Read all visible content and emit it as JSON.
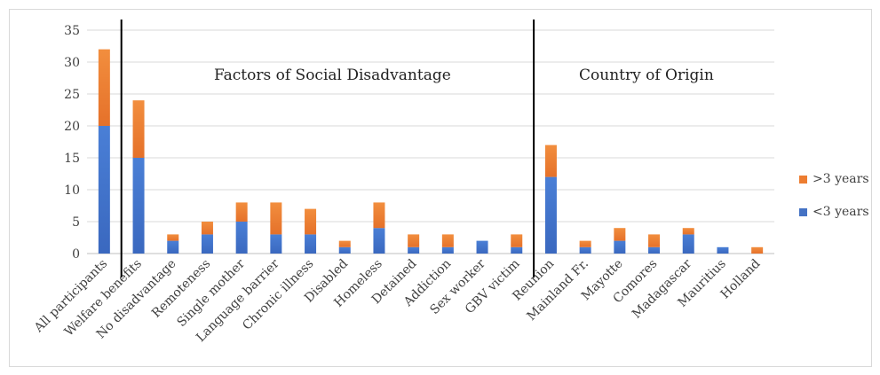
{
  "chart_data": {
    "type": "bar",
    "stacked": true,
    "categories": [
      "All participants",
      "Welfare benefits",
      "No disadvantage",
      "Remoteness",
      "Single mother",
      "Language barrier",
      "Chronic illness",
      "Disabled",
      "Homeless",
      "Detained",
      "Addiction",
      "Sex worker",
      "GBV victim",
      "Reunion",
      "Mainland Fr.",
      "Mayotte",
      "Comores",
      "Madagascar",
      "Mauritius",
      "Holland"
    ],
    "series": [
      {
        "name": "<3 years",
        "color": "#4472c4",
        "values": [
          20,
          15,
          2,
          3,
          5,
          3,
          3,
          1,
          4,
          1,
          1,
          2,
          1,
          12,
          1,
          2,
          1,
          3,
          1,
          0
        ]
      },
      {
        "name": ">3 years",
        "color": "#ed7d31",
        "values": [
          12,
          9,
          1,
          2,
          3,
          5,
          4,
          1,
          4,
          2,
          2,
          0,
          2,
          5,
          1,
          2,
          2,
          1,
          0,
          1
        ]
      }
    ],
    "ylim": [
      0,
      35
    ],
    "yticks": [
      0,
      5,
      10,
      15,
      20,
      25,
      30,
      35
    ],
    "grid": true,
    "legend_position": "right",
    "separators_after_index": [
      0,
      12
    ],
    "annotations": [
      "Factors of Social Disadvantage",
      "Country of Origin"
    ]
  }
}
